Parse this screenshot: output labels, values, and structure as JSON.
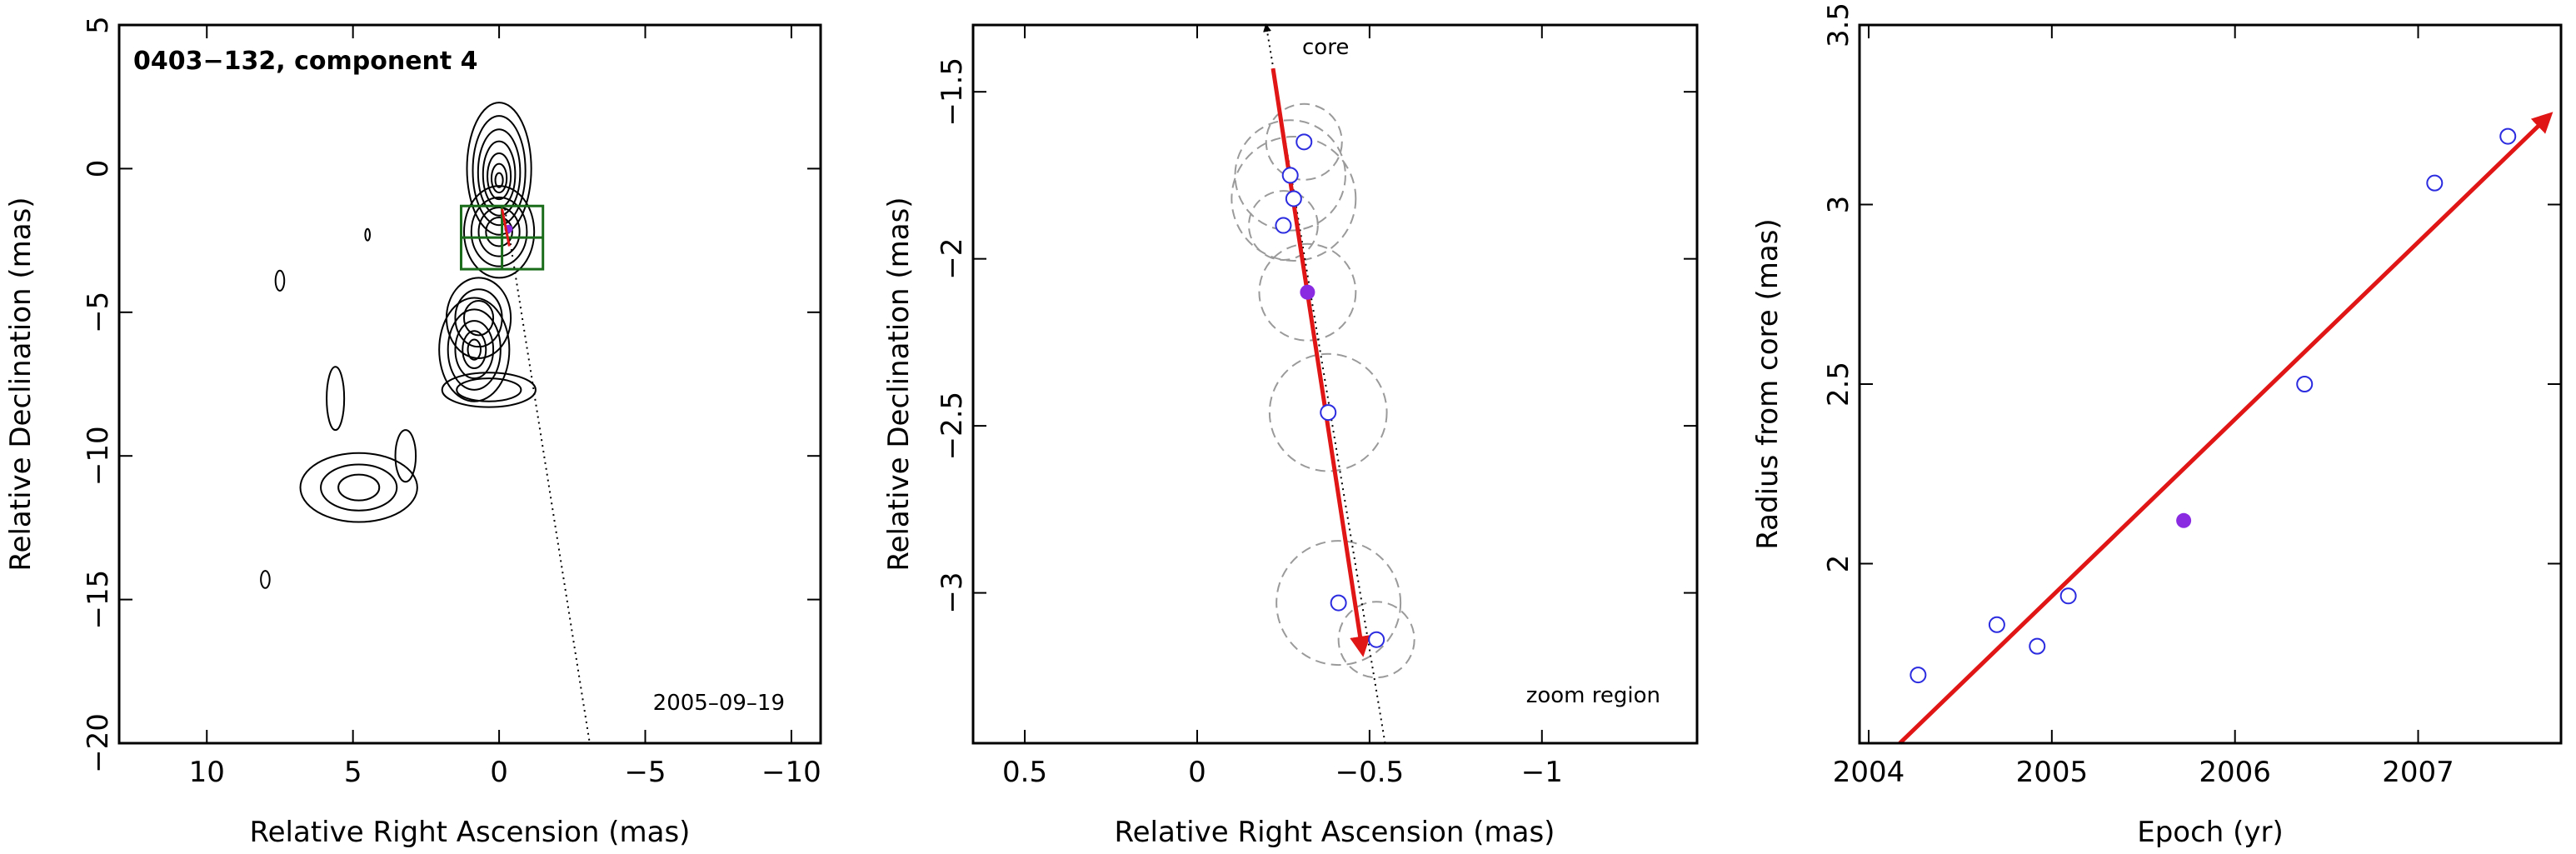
{
  "chart_data": [
    {
      "type": "contour_map",
      "title": "0403−132, component 4",
      "date_label": "2005–09–19",
      "xlabel": "Relative Right Ascension (mas)",
      "ylabel": "Relative Declination (mas)",
      "xlim": [
        13,
        -11
      ],
      "ylim": [
        -20,
        5
      ],
      "xticks": [
        10,
        5,
        0,
        -5,
        -10
      ],
      "xtick_labels": [
        "10",
        "5",
        "0",
        "−5",
        "−10"
      ],
      "yticks": [
        5,
        0,
        -5,
        -10,
        -15,
        -20
      ],
      "ytick_labels": [
        "5",
        "0",
        "−5",
        "−10",
        "−15",
        "−20"
      ],
      "core_position": [
        0.0,
        0.0
      ],
      "component_position": [
        -0.32,
        -2.1
      ],
      "trajectory_line": [
        [
          -0.2,
          -1.4
        ],
        [
          -3.1,
          -20
        ]
      ],
      "zoom_box": {
        "x": [
          1.3,
          -1.5
        ],
        "y": [
          -1.3,
          -3.5
        ]
      }
    },
    {
      "type": "scatter",
      "xlabel": "Relative Right Ascension (mas)",
      "ylabel": "Relative Declination (mas)",
      "xlim": [
        0.65,
        -1.45
      ],
      "ylim": [
        -3.45,
        -1.3
      ],
      "xticks": [
        0.5,
        0,
        -0.5,
        -1
      ],
      "xtick_labels": [
        "0.5",
        "0",
        "−0.5",
        "−1"
      ],
      "yticks": [
        -1.5,
        -2,
        -2.5,
        -3
      ],
      "ytick_labels": [
        "−1.5",
        "−2",
        "−2.5",
        "−3"
      ],
      "core_label": "core",
      "region_label": "zoom region",
      "points": [
        {
          "x": -0.31,
          "y": -1.65,
          "r": 0.11
        },
        {
          "x": -0.27,
          "y": -1.75,
          "r": 0.16
        },
        {
          "x": -0.28,
          "y": -1.82,
          "r": 0.18
        },
        {
          "x": -0.25,
          "y": -1.9,
          "r": 0.1
        },
        {
          "x": -0.32,
          "y": -2.1,
          "r": 0.14,
          "highlight": true
        },
        {
          "x": -0.38,
          "y": -2.46,
          "r": 0.17
        },
        {
          "x": -0.41,
          "y": -3.03,
          "r": 0.18
        },
        {
          "x": -0.52,
          "y": -3.14,
          "r": 0.11
        }
      ],
      "motion_vector": {
        "from": [
          -0.22,
          -1.43
        ],
        "to": [
          -0.48,
          -3.18
        ]
      },
      "core_line": {
        "from": [
          -0.545,
          -3.45
        ],
        "to": [
          -0.2,
          -1.3
        ]
      }
    },
    {
      "type": "scatter",
      "xlabel": "Epoch (yr)",
      "ylabel": "Radius from core (mas)",
      "xlim": [
        2003.95,
        2007.78
      ],
      "ylim": [
        1.5,
        3.5
      ],
      "xticks": [
        2004,
        2005,
        2006,
        2007
      ],
      "xtick_labels": [
        "2004",
        "2005",
        "2006",
        "2007"
      ],
      "yticks": [
        2,
        2.5,
        3,
        3.5
      ],
      "ytick_labels": [
        "2",
        "2.5",
        "3",
        "3.5"
      ],
      "x": [
        2004.27,
        2004.7,
        2004.92,
        2005.09,
        2005.72,
        2006.38,
        2007.09,
        2007.49
      ],
      "y": [
        1.69,
        1.83,
        1.77,
        1.91,
        2.12,
        2.5,
        3.06,
        3.19
      ],
      "highlight_index": 4,
      "fit_line": {
        "x": [
          2004.17,
          2007.72
        ],
        "y": [
          1.5,
          3.25
        ]
      }
    }
  ],
  "colors": {
    "axes": "#000000",
    "contour": "#000000",
    "point": "#2b2be0",
    "highlight": "#8a2be2",
    "arrow": "#e01515",
    "zoom_box": "#1a6b1a",
    "error_circle": "#9a9a9a"
  }
}
